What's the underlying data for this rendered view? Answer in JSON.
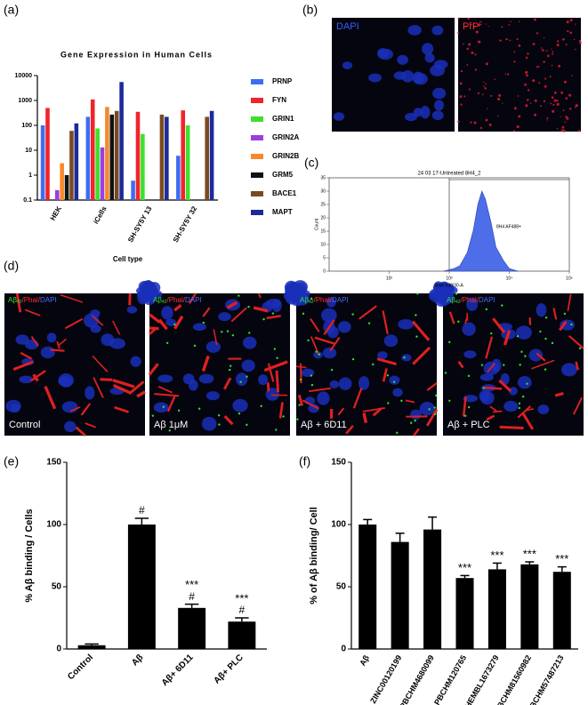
{
  "panel_labels": [
    "(a)",
    "(b)",
    "(c)",
    "(d)",
    "(e)",
    "(f)"
  ],
  "images": {
    "b": {
      "left": "DAPI",
      "right": [
        "PrP",
        "c"
      ]
    },
    "d": {
      "stain": [
        "Aβ",
        "42",
        "/Phal/",
        "DAPI"
      ],
      "captions": [
        "Control",
        "Aβ 1μM",
        "Aβ + 6D11",
        "Aβ + PLC"
      ]
    }
  },
  "chart_data": [
    {
      "type": "bar",
      "title": "Gene Expression in Human Cells",
      "xlabel": "Cell type",
      "log_y": true,
      "categories": [
        "HEK",
        "iCells",
        "SH-SY5Y 13",
        "SH-SY5Y 32"
      ],
      "series": [
        {
          "name": "PRNP",
          "color": "#3d6df2",
          "values": [
            100,
            220,
            0.6,
            6
          ]
        },
        {
          "name": "FYN",
          "color": "#f0242a",
          "values": [
            500,
            1100,
            350,
            400
          ]
        },
        {
          "name": "GRIN1",
          "color": "#3de02a",
          "values": [
            null,
            75,
            45,
            100
          ]
        },
        {
          "name": "GRIN2A",
          "color": "#9a3ee0",
          "values": [
            0.25,
            13,
            null,
            null
          ]
        },
        {
          "name": "GRIN2B",
          "color": "#f7892a",
          "values": [
            3,
            550,
            null,
            null
          ]
        },
        {
          "name": "GRM5",
          "color": "#111111",
          "values": [
            1,
            270,
            null,
            null
          ]
        },
        {
          "name": "BACE1",
          "color": "#7a4a22",
          "values": [
            60,
            380,
            270,
            220
          ]
        },
        {
          "name": "MAPT",
          "color": "#1c2a9a",
          "values": [
            120,
            5500,
            220,
            380
          ]
        }
      ],
      "ylim": [
        0.1,
        10000
      ],
      "yticks": [
        0.1,
        1,
        10,
        100,
        1000,
        10000
      ]
    },
    {
      "type": "area",
      "title": "24 03 17-Untreated 8H4_2",
      "xlabel": "Blue 530/30-A",
      "ylabel": "Count",
      "log_x": true,
      "gate": 1000,
      "gate_label": "8H4 AF488+",
      "color": "#4d6ee8",
      "x": [
        800,
        1200,
        1500,
        2000,
        2500,
        3000,
        3500,
        4000,
        5000,
        6000,
        8000,
        10000,
        14000
      ],
      "values": [
        0,
        1,
        2,
        7,
        15,
        25,
        30,
        27,
        18,
        9,
        4,
        1,
        0
      ],
      "xlim": [
        10,
        100000
      ],
      "xticks": [
        {
          "value": 100,
          "label": "10²"
        },
        {
          "value": 1000,
          "label": "10³"
        },
        {
          "value": 10000,
          "label": "10⁴"
        },
        {
          "value": 100000,
          "label": "10⁵"
        }
      ],
      "ylim": [
        0,
        35
      ],
      "yticks": [
        0,
        5,
        10,
        15,
        20,
        25,
        30,
        35
      ]
    },
    {
      "type": "bar",
      "ylabel": "% Aβ binding / Cells",
      "color": "#000000",
      "categories": [
        "Control",
        "Aβ",
        "Aβ+ 6D11",
        "Aβ+ PLC"
      ],
      "values": [
        3,
        100,
        33,
        22
      ],
      "errors": [
        1,
        5,
        3,
        3
      ],
      "annotations": [
        null,
        [
          "#"
        ],
        [
          "***",
          "#"
        ],
        [
          "***",
          "#"
        ]
      ],
      "ylim": [
        0,
        150
      ],
      "yticks": [
        0,
        50,
        100,
        150
      ]
    },
    {
      "type": "bar",
      "ylabel": "% of Aβ binding/ Cell",
      "color": "#000000",
      "categories": [
        "Aβ",
        "ZINC00120199",
        "PBCHM4680099",
        "PBCHM120765",
        "CHEMBL1673279",
        "PBCHM81560982",
        "PBCHM57487213"
      ],
      "values": [
        100,
        86,
        96,
        57,
        64,
        68,
        62
      ],
      "errors": [
        4,
        7,
        10,
        2,
        5,
        2,
        4
      ],
      "annotations": [
        null,
        null,
        null,
        [
          "***"
        ],
        [
          "***"
        ],
        [
          "***"
        ],
        [
          "***"
        ]
      ],
      "ylim": [
        0,
        150
      ],
      "yticks": [
        0,
        50,
        100,
        150
      ]
    }
  ]
}
